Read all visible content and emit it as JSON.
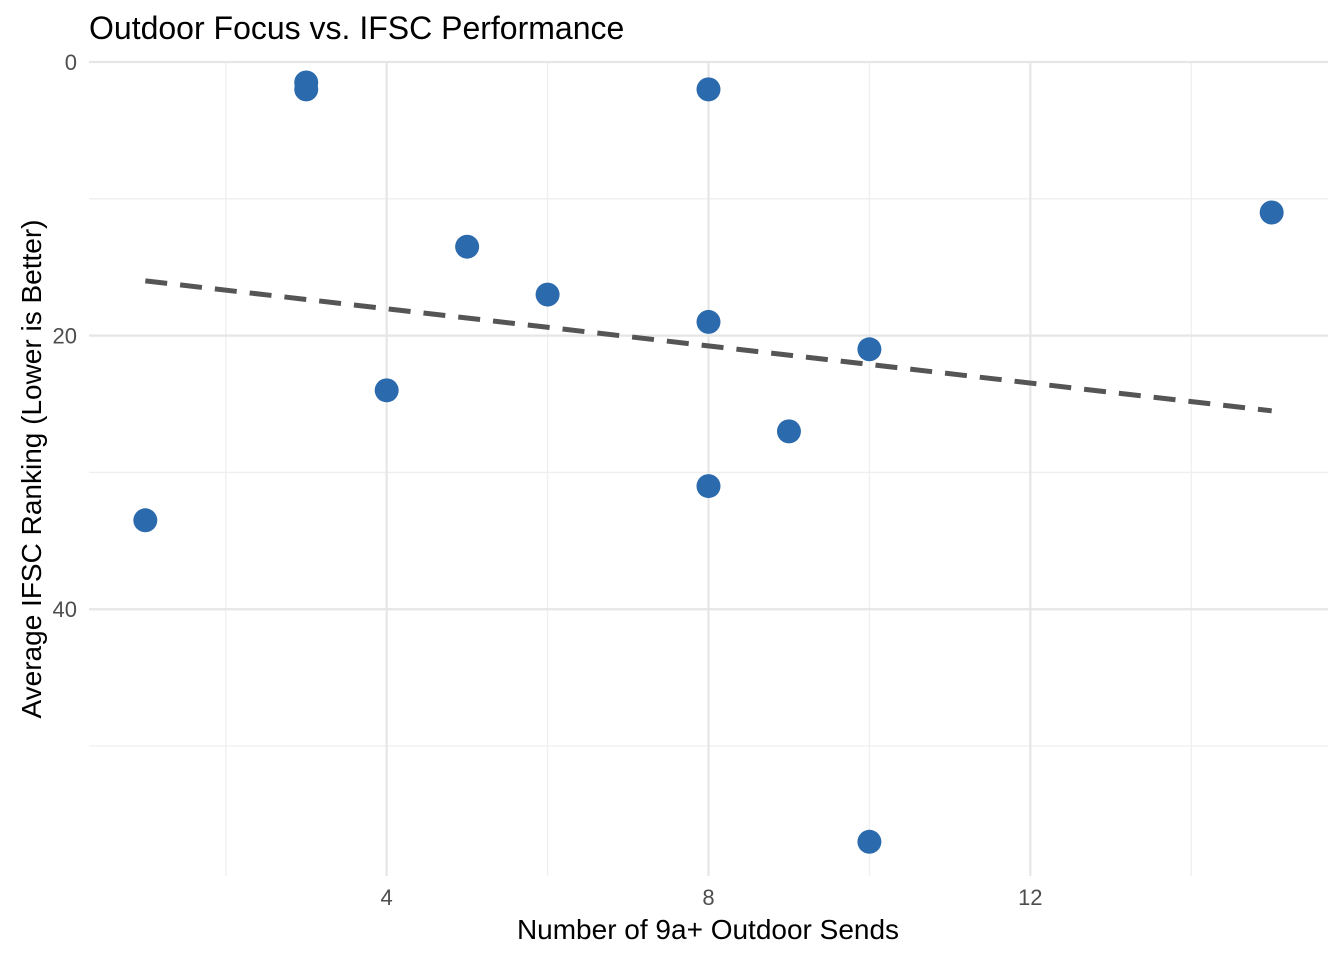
{
  "chart_data": {
    "type": "scatter",
    "title": "Outdoor Focus vs. IFSC Performance",
    "xlabel": "Number of 9a+ Outdoor Sends",
    "ylabel": "Average IFSC Ranking (Lower is Better)",
    "xlim": [
      0.3,
      15.7
    ],
    "ylim": [
      0,
      59.5
    ],
    "y_reversed": true,
    "x_major_ticks": [
      4,
      8,
      12
    ],
    "x_minor_ticks": [
      2,
      6,
      10,
      14
    ],
    "y_major_ticks": [
      0,
      20,
      40
    ],
    "y_minor_ticks": [
      10,
      30,
      50
    ],
    "grid": true,
    "points": [
      {
        "x": 3,
        "y": 1.5
      },
      {
        "x": 3,
        "y": 2
      },
      {
        "x": 8,
        "y": 2
      },
      {
        "x": 15,
        "y": 11
      },
      {
        "x": 5,
        "y": 13.5
      },
      {
        "x": 6,
        "y": 17
      },
      {
        "x": 8,
        "y": 19
      },
      {
        "x": 10,
        "y": 21
      },
      {
        "x": 4,
        "y": 24
      },
      {
        "x": 9,
        "y": 27
      },
      {
        "x": 8,
        "y": 31
      },
      {
        "x": 1,
        "y": 33.5
      },
      {
        "x": 10,
        "y": 57
      }
    ],
    "trendline": {
      "style": "dashed",
      "x": [
        1,
        15
      ],
      "y": [
        16,
        25.5
      ]
    },
    "colors": {
      "point": "#2b6aad",
      "trend": "#555555"
    }
  }
}
